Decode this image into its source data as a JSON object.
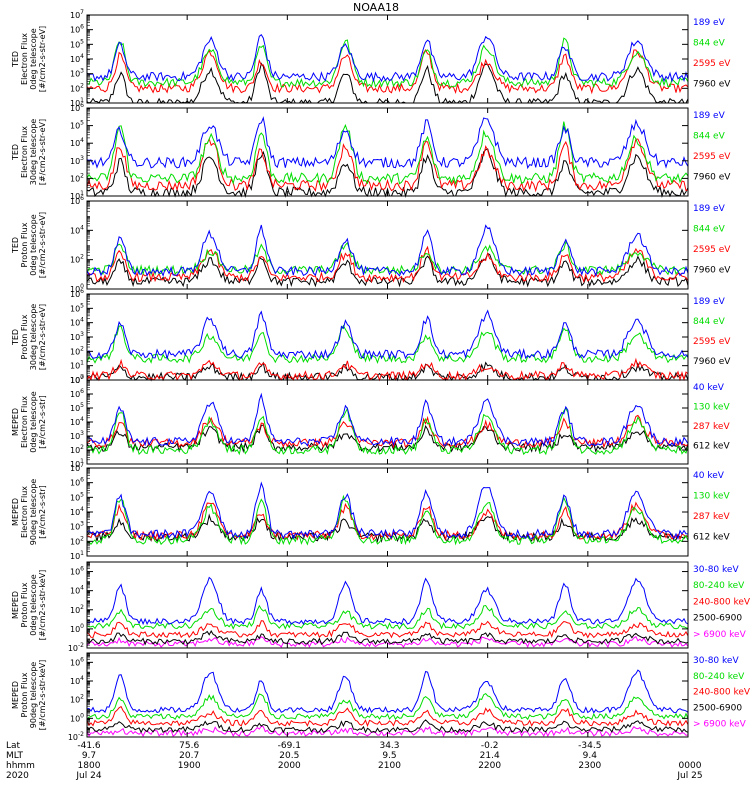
{
  "title": "NOAA18",
  "colors": {
    "blue": "#0000ff",
    "red": "#ff0000",
    "green": "#00dd00",
    "black": "#000000",
    "magenta": "#ff00ff"
  },
  "footer": {
    "rows": [
      {
        "label": "Lat",
        "values": [
          "-41.6",
          "75.6",
          "-69.1",
          "34.3",
          "-0.2",
          "-34.5",
          ""
        ]
      },
      {
        "label": "MLT",
        "values": [
          "9.7",
          "20.7",
          "20.5",
          "9.5",
          "21.4",
          "9.4",
          ""
        ]
      },
      {
        "label": "hhmm",
        "values": [
          "1800",
          "1900",
          "2000",
          "2100",
          "2200",
          "2300",
          "0000"
        ]
      },
      {
        "label": "2020",
        "values": [
          "Jul 24",
          "",
          "",
          "",
          "",
          "",
          "Jul 25"
        ]
      }
    ]
  },
  "chart_data": [
    {
      "type": "line",
      "ylabel": [
        "TED",
        "Electron Flux",
        "0deg telescope",
        "[#/cm2-s-str-eV]"
      ],
      "ylim": [
        10,
        10000000
      ],
      "yscale": "log",
      "ticks": [
        {
          "exp": "1",
          "value": 10
        },
        {
          "exp": "2",
          "value": 100
        },
        {
          "exp": "3",
          "value": 1000
        },
        {
          "exp": "4",
          "value": 10000
        },
        {
          "exp": "5",
          "value": 100000
        },
        {
          "exp": "6",
          "value": 1000000
        },
        {
          "exp": "7",
          "value": 10000000
        }
      ],
      "series": [
        {
          "name": "7960 eV",
          "color": "black",
          "base": 1,
          "peak": 3.6
        },
        {
          "name": "2595 eV",
          "color": "red",
          "base": 2,
          "peak": 4.5
        },
        {
          "name": "844 eV",
          "color": "green",
          "base": 2.4,
          "peak": 5.2
        },
        {
          "name": "189 eV",
          "color": "blue",
          "base": 2.8,
          "peak": 5.6
        }
      ]
    },
    {
      "type": "line",
      "ylabel": [
        "TED",
        "Electron Flux",
        "30deg telescope",
        "[#/cm2-s-str-eV]"
      ],
      "ylim": [
        10,
        1000000
      ],
      "yscale": "log",
      "ticks": [
        {
          "exp": "1",
          "value": 10
        },
        {
          "exp": "2",
          "value": 100
        },
        {
          "exp": "3",
          "value": 1000
        },
        {
          "exp": "4",
          "value": 10000
        },
        {
          "exp": "5",
          "value": 100000
        },
        {
          "exp": "6",
          "value": 1000000
        }
      ],
      "series": [
        {
          "name": "7960 eV",
          "color": "black",
          "base": 1.2,
          "peak": 3.5
        },
        {
          "name": "2595 eV",
          "color": "red",
          "base": 1.6,
          "peak": 4.2
        },
        {
          "name": "844 eV",
          "color": "green",
          "base": 2,
          "peak": 5
        },
        {
          "name": "189 eV",
          "color": "blue",
          "base": 2.9,
          "peak": 5.4
        }
      ]
    },
    {
      "type": "line",
      "ylabel": [
        "TED",
        "Proton Flux",
        "0deg telescope",
        "[#/cm2-s-str-eV]"
      ],
      "ylim": [
        1,
        1000000
      ],
      "yscale": "log",
      "ticks": [
        {
          "exp": "0",
          "value": 1
        },
        {
          "exp": "2",
          "value": 100
        },
        {
          "exp": "4",
          "value": 10000
        },
        {
          "exp": "6",
          "value": 1000000
        }
      ],
      "series": [
        {
          "name": "7960 eV",
          "color": "black",
          "base": 0.5,
          "peak": 2.2
        },
        {
          "name": "2595 eV",
          "color": "red",
          "base": 0.8,
          "peak": 2.6
        },
        {
          "name": "844 eV",
          "color": "green",
          "base": 1.3,
          "peak": 3
        },
        {
          "name": "189 eV",
          "color": "blue",
          "base": 1.2,
          "peak": 4.1
        }
      ]
    },
    {
      "type": "line",
      "ylabel": [
        "TED",
        "Proton Flux",
        "30deg telescope",
        "[#/cm2-s-str-eV]"
      ],
      "ylim": [
        1,
        1000000
      ],
      "yscale": "log",
      "ticks": [
        {
          "exp": "0",
          "value": 1
        },
        {
          "exp": "1",
          "value": 10
        },
        {
          "exp": "2",
          "value": 100
        },
        {
          "exp": "3",
          "value": 1000
        },
        {
          "exp": "4",
          "value": 10000
        },
        {
          "exp": "5",
          "value": 100000
        },
        {
          "exp": "6",
          "value": 1000000
        }
      ],
      "series": [
        {
          "name": "7960 eV",
          "color": "black",
          "base": 0.2,
          "peak": 1
        },
        {
          "name": "2595 eV",
          "color": "red",
          "base": 0.3,
          "peak": 1.2
        },
        {
          "name": "844 eV",
          "color": "green",
          "base": 1.5,
          "peak": 3.7
        },
        {
          "name": "189 eV",
          "color": "blue",
          "base": 1.8,
          "peak": 4.6
        }
      ]
    },
    {
      "type": "line",
      "ylabel": [
        "MEPED",
        "Electron Flux",
        "0deg telescope",
        "[#/cm2-s-str]"
      ],
      "ylim": [
        10,
        10000000
      ],
      "yscale": "log",
      "ticks": [
        {
          "exp": "1",
          "value": 10
        },
        {
          "exp": "2",
          "value": 100
        },
        {
          "exp": "3",
          "value": 1000
        },
        {
          "exp": "4",
          "value": 10000
        },
        {
          "exp": "5",
          "value": 100000
        },
        {
          "exp": "6",
          "value": 1000000
        },
        {
          "exp": "7",
          "value": 10000000
        }
      ],
      "series": [
        {
          "name": "612 keV",
          "color": "black",
          "base": 2.2,
          "peak": 3.6
        },
        {
          "name": "287 keV",
          "color": "red",
          "base": 2.5,
          "peak": 4.2
        },
        {
          "name": "130 keV",
          "color": "green",
          "base": 2,
          "peak": 4.8
        },
        {
          "name": "40 keV",
          "color": "blue",
          "base": 2.6,
          "peak": 5.7
        }
      ]
    },
    {
      "type": "line",
      "ylabel": [
        "MEPED",
        "Electron Flux",
        "90deg telescope",
        "[#/cm2-s-str]"
      ],
      "ylim": [
        10,
        10000000
      ],
      "yscale": "log",
      "ticks": [
        {
          "exp": "1",
          "value": 10
        },
        {
          "exp": "2",
          "value": 100
        },
        {
          "exp": "3",
          "value": 1000
        },
        {
          "exp": "4",
          "value": 10000
        },
        {
          "exp": "5",
          "value": 100000
        },
        {
          "exp": "6",
          "value": 1000000
        },
        {
          "exp": "7",
          "value": 10000000
        }
      ],
      "series": [
        {
          "name": "612 keV",
          "color": "black",
          "base": 2.3,
          "peak": 3.7
        },
        {
          "name": "287 keV",
          "color": "red",
          "base": 2.4,
          "peak": 4.5
        },
        {
          "name": "130 keV",
          "color": "green",
          "base": 2.1,
          "peak": 5
        },
        {
          "name": "40 keV",
          "color": "blue",
          "base": 2.5,
          "peak": 5.9
        }
      ]
    },
    {
      "type": "line",
      "ylabel": [
        "MEPED",
        "Proton Flux",
        "0deg telescope",
        "[#/cm2-s-str-keV]"
      ],
      "ylim": [
        0.01,
        10000000
      ],
      "yscale": "log",
      "ticks": [
        {
          "exp": "-2",
          "value": 0.01
        },
        {
          "exp": "0",
          "value": 1
        },
        {
          "exp": "2",
          "value": 100
        },
        {
          "exp": "4",
          "value": 10000
        },
        {
          "exp": "6",
          "value": 1000000
        }
      ],
      "series": [
        {
          "name": "> 6900 keV",
          "color": "magenta",
          "base": -1.6,
          "peak": -1
        },
        {
          "name": "2500-6900",
          "color": "black",
          "base": -1.3,
          "peak": -0.5
        },
        {
          "name": "240-800 keV",
          "color": "red",
          "base": -0.6,
          "peak": 0.8
        },
        {
          "name": "80-240 keV",
          "color": "green",
          "base": 0.3,
          "peak": 2.3
        },
        {
          "name": "30-80 keV",
          "color": "blue",
          "base": 0.8,
          "peak": 5.2
        }
      ]
    },
    {
      "type": "line",
      "ylabel": [
        "MEPED",
        "Proton Flux",
        "90deg telescope",
        "[#/cm2-s-str-keV]"
      ],
      "ylim": [
        0.01,
        10000000
      ],
      "yscale": "log",
      "ticks": [
        {
          "exp": "-2",
          "value": 0.01
        },
        {
          "exp": "0",
          "value": 1
        },
        {
          "exp": "2",
          "value": 100
        },
        {
          "exp": "4",
          "value": 10000
        },
        {
          "exp": "6",
          "value": 1000000
        }
      ],
      "series": [
        {
          "name": "> 6900 keV",
          "color": "magenta",
          "base": -1.6,
          "peak": -1.1
        },
        {
          "name": "2500-6900",
          "color": "black",
          "base": -1.2,
          "peak": -0.4
        },
        {
          "name": "240-800 keV",
          "color": "red",
          "base": -0.5,
          "peak": 1
        },
        {
          "name": "80-240 keV",
          "color": "green",
          "base": 0.2,
          "peak": 2.6
        },
        {
          "name": "30-80 keV",
          "color": "blue",
          "base": 0.9,
          "peak": 5
        }
      ]
    }
  ]
}
